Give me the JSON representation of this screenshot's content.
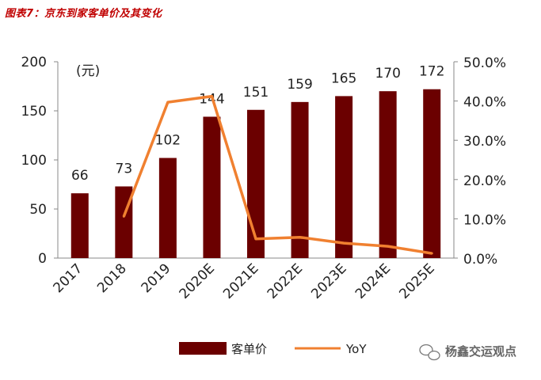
{
  "title": "图表7：京东到家客单价及其变化",
  "chart_data": {
    "type": "bar",
    "categories": [
      "2017",
      "2018",
      "2019",
      "2020E",
      "2021E",
      "2022E",
      "2023E",
      "2024E",
      "2025E"
    ],
    "series": [
      {
        "name": "客单价",
        "type": "bar",
        "axis": "left",
        "color": "#6b0000",
        "values": [
          66,
          73,
          102,
          144,
          151,
          159,
          165,
          170,
          172
        ]
      },
      {
        "name": "YoY",
        "type": "line",
        "axis": "right",
        "color": "#f08030",
        "values": [
          null,
          10.6,
          39.7,
          41.2,
          4.9,
          5.3,
          3.8,
          3.0,
          1.2
        ]
      }
    ],
    "data_labels": [
      "66",
      "73",
      "102",
      "144",
      "151",
      "159",
      "165",
      "170",
      "172"
    ],
    "y_unit_label": "(元)",
    "ylim": [
      0,
      200
    ],
    "yticks": [
      "0",
      "50",
      "100",
      "150",
      "200"
    ],
    "y2lim": [
      0,
      50
    ],
    "y2ticks": [
      "0.0%",
      "10.0%",
      "20.0%",
      "30.0%",
      "40.0%",
      "50.0%"
    ],
    "legend_position": "bottom",
    "grid": false
  },
  "watermark": "杨鑫交运观点"
}
